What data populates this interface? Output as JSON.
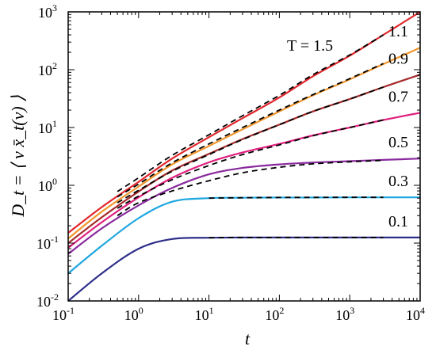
{
  "chart_data": {
    "type": "line",
    "xscale": "log",
    "yscale": "log",
    "xlim": [
      0.1,
      10000
    ],
    "ylim": [
      0.01,
      1000
    ],
    "xlabel": "t",
    "ylabel": "D_t = ⟨ v x̄_t(v) ⟩",
    "x_ticks": [
      {
        "base": "10",
        "exp": "-1"
      },
      {
        "base": "10",
        "exp": "0"
      },
      {
        "base": "10",
        "exp": "1"
      },
      {
        "base": "10",
        "exp": "2"
      },
      {
        "base": "10",
        "exp": "3"
      },
      {
        "base": "10",
        "exp": "4"
      }
    ],
    "y_ticks": [
      {
        "base": "10",
        "exp": "-2"
      },
      {
        "base": "10",
        "exp": "-1"
      },
      {
        "base": "10",
        "exp": "0"
      },
      {
        "base": "10",
        "exp": "1"
      },
      {
        "base": "10",
        "exp": "2"
      },
      {
        "base": "10",
        "exp": "3"
      }
    ],
    "x": [
      0.1,
      0.3,
      1,
      3,
      10,
      30,
      100,
      300,
      1000,
      3000,
      10000
    ],
    "series": [
      {
        "name": "T = 1.5",
        "color": "#e0262b",
        "values": [
          0.15,
          0.42,
          1.15,
          2.9,
          6.8,
          14.5,
          33,
          77,
          175,
          400,
          1000
        ]
      },
      {
        "name": "1.1",
        "color": "#f0962c",
        "values": [
          0.12,
          0.35,
          0.95,
          2.3,
          4.8,
          9.3,
          19,
          36,
          68,
          125,
          240
        ]
      },
      {
        "name": "0.9",
        "color": "#a52a2a",
        "values": [
          0.1,
          0.28,
          0.78,
          1.8,
          3.5,
          6.3,
          11.2,
          19,
          31,
          50,
          82
        ]
      },
      {
        "name": "0.7",
        "color": "#e0207e",
        "values": [
          0.083,
          0.23,
          0.62,
          1.35,
          2.5,
          3.7,
          5.2,
          7.3,
          10,
          13.5,
          18
        ]
      },
      {
        "name": "0.5",
        "color": "#8a2a9e",
        "values": [
          0.065,
          0.18,
          0.45,
          0.9,
          1.55,
          2.0,
          2.3,
          2.48,
          2.62,
          2.75,
          2.9
        ]
      },
      {
        "name": "0.3",
        "color": "#1ea6df",
        "values": [
          0.03,
          0.09,
          0.27,
          0.52,
          0.6,
          0.61,
          0.615,
          0.615,
          0.62,
          0.62,
          0.62
        ]
      },
      {
        "name": "0.1",
        "color": "#2e2e8a",
        "values": [
          0.01,
          0.03,
          0.08,
          0.118,
          0.124,
          0.125,
          0.125,
          0.125,
          0.125,
          0.125,
          0.125
        ]
      }
    ],
    "reference": [
      {
        "x": [
          0.5,
          1,
          3,
          10,
          30,
          100,
          300,
          1000,
          3000
        ],
        "values": [
          0.78,
          1.35,
          3.3,
          7.5,
          16,
          36,
          82,
          180,
          400
        ]
      },
      {
        "x": [
          0.5,
          1,
          3,
          10,
          30,
          100,
          300,
          1000,
          3000
        ],
        "values": [
          0.63,
          1.05,
          2.45,
          5.2,
          10,
          20,
          37,
          70,
          128
        ]
      },
      {
        "x": [
          0.5,
          1,
          3,
          10,
          30,
          100,
          300,
          1000,
          3000
        ],
        "values": [
          0.5,
          0.82,
          1.75,
          3.4,
          6.2,
          11.2,
          19,
          31,
          50
        ]
      },
      {
        "x": [
          0.5,
          1,
          3,
          10,
          30,
          100,
          300,
          1000,
          3000
        ],
        "values": [
          0.4,
          0.65,
          1.25,
          2.2,
          3.4,
          5.0,
          7.2,
          10,
          13.5
        ]
      },
      {
        "x": [
          0.5,
          1,
          3,
          10,
          30,
          100,
          300,
          1000,
          3000
        ],
        "values": [
          0.3,
          0.5,
          0.8,
          1.2,
          1.65,
          2.05,
          2.35,
          2.55,
          2.7
        ]
      },
      {
        "x": [
          10,
          30,
          100,
          300,
          1000,
          3000
        ],
        "values": [
          0.6,
          0.61,
          0.615,
          0.618,
          0.62,
          0.62
        ]
      },
      {
        "x": [
          10,
          30,
          100,
          300,
          1000,
          3000
        ],
        "values": [
          0.124,
          0.125,
          0.125,
          0.125,
          0.125,
          0.125
        ]
      }
    ]
  }
}
